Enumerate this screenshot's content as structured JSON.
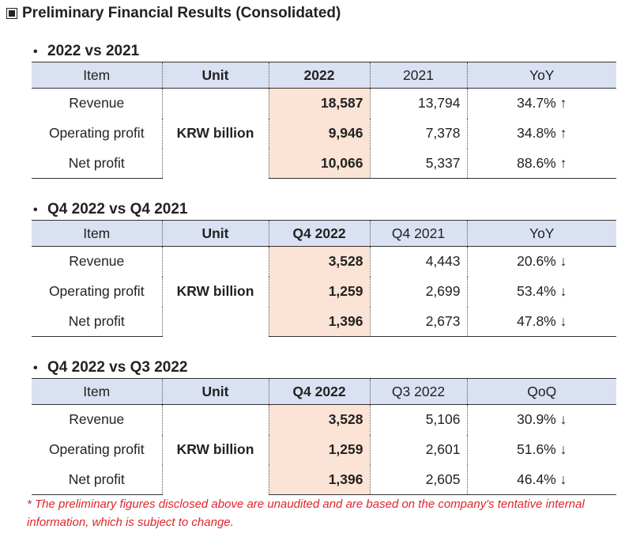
{
  "page_title": "Preliminary Financial Results (Consolidated)",
  "sections": [
    {
      "heading": "2022 vs 2021",
      "headers": [
        "Item",
        "Unit",
        "2022",
        "2021",
        "YoY"
      ],
      "unit": "KRW billion",
      "rows": [
        {
          "item": "Revenue",
          "current": "18,587",
          "previous": "13,794",
          "change": "34.7% ↑"
        },
        {
          "item": "Operating profit",
          "current": "9,946",
          "previous": "7,378",
          "change": "34.8% ↑"
        },
        {
          "item": "Net profit",
          "current": "10,066",
          "previous": "5,337",
          "change": "88.6% ↑"
        }
      ]
    },
    {
      "heading": "Q4 2022 vs Q4 2021",
      "headers": [
        "Item",
        "Unit",
        "Q4 2022",
        "Q4 2021",
        "YoY"
      ],
      "unit": "KRW billion",
      "rows": [
        {
          "item": "Revenue",
          "current": "3,528",
          "previous": "4,443",
          "change": "20.6% ↓"
        },
        {
          "item": "Operating profit",
          "current": "1,259",
          "previous": "2,699",
          "change": "53.4% ↓"
        },
        {
          "item": "Net profit",
          "current": "1,396",
          "previous": "2,673",
          "change": "47.8% ↓"
        }
      ]
    },
    {
      "heading": "Q4 2022 vs Q3 2022",
      "headers": [
        "Item",
        "Unit",
        "Q4 2022",
        "Q3 2022",
        "QoQ"
      ],
      "unit": "KRW billion",
      "rows": [
        {
          "item": "Revenue",
          "current": "3,528",
          "previous": "5,106",
          "change": "30.9% ↓"
        },
        {
          "item": "Operating profit",
          "current": "1,259",
          "previous": "2,601",
          "change": "51.6% ↓"
        },
        {
          "item": "Net profit",
          "current": "1,396",
          "previous": "2,605",
          "change": "46.4% ↓"
        }
      ]
    }
  ],
  "footnote": "* The preliminary figures disclosed above are unaudited and are based on the company's tentative internal information, which is subject to change.",
  "colors": {
    "header_bg": "#d9e1f2",
    "highlight_bg": "#fbe4d6",
    "footnote": "#e0242b"
  }
}
